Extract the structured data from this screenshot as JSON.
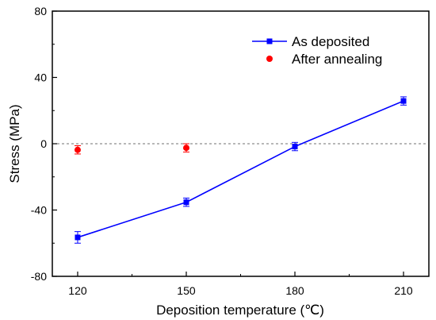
{
  "chart_data": {
    "type": "scatter",
    "xlabel": "Deposition temperature (℃)",
    "ylabel": "Stress (MPa)",
    "x_ticks": [
      "120",
      "150",
      "180",
      "210"
    ],
    "y_ticks": [
      "80",
      "40",
      "0",
      "-40",
      "-80"
    ],
    "xlim": [
      113,
      217
    ],
    "ylim": [
      -80,
      80
    ],
    "grid": false,
    "zero_line": true,
    "legend_position": "top-right",
    "series": [
      {
        "name": "As deposited",
        "style": "line+square",
        "color": "#0000ff",
        "x": [
          120,
          150,
          180,
          210
        ],
        "y": [
          -56.5,
          -35.3,
          -1.7,
          25.8
        ],
        "err": [
          3.5,
          2.5,
          2.5,
          2.5
        ]
      },
      {
        "name": "After annealing",
        "style": "circle",
        "color": "#ff0000",
        "x": [
          120,
          150
        ],
        "y": [
          -3.7,
          -2.5
        ],
        "err": [
          2.5,
          2.5
        ]
      }
    ]
  }
}
